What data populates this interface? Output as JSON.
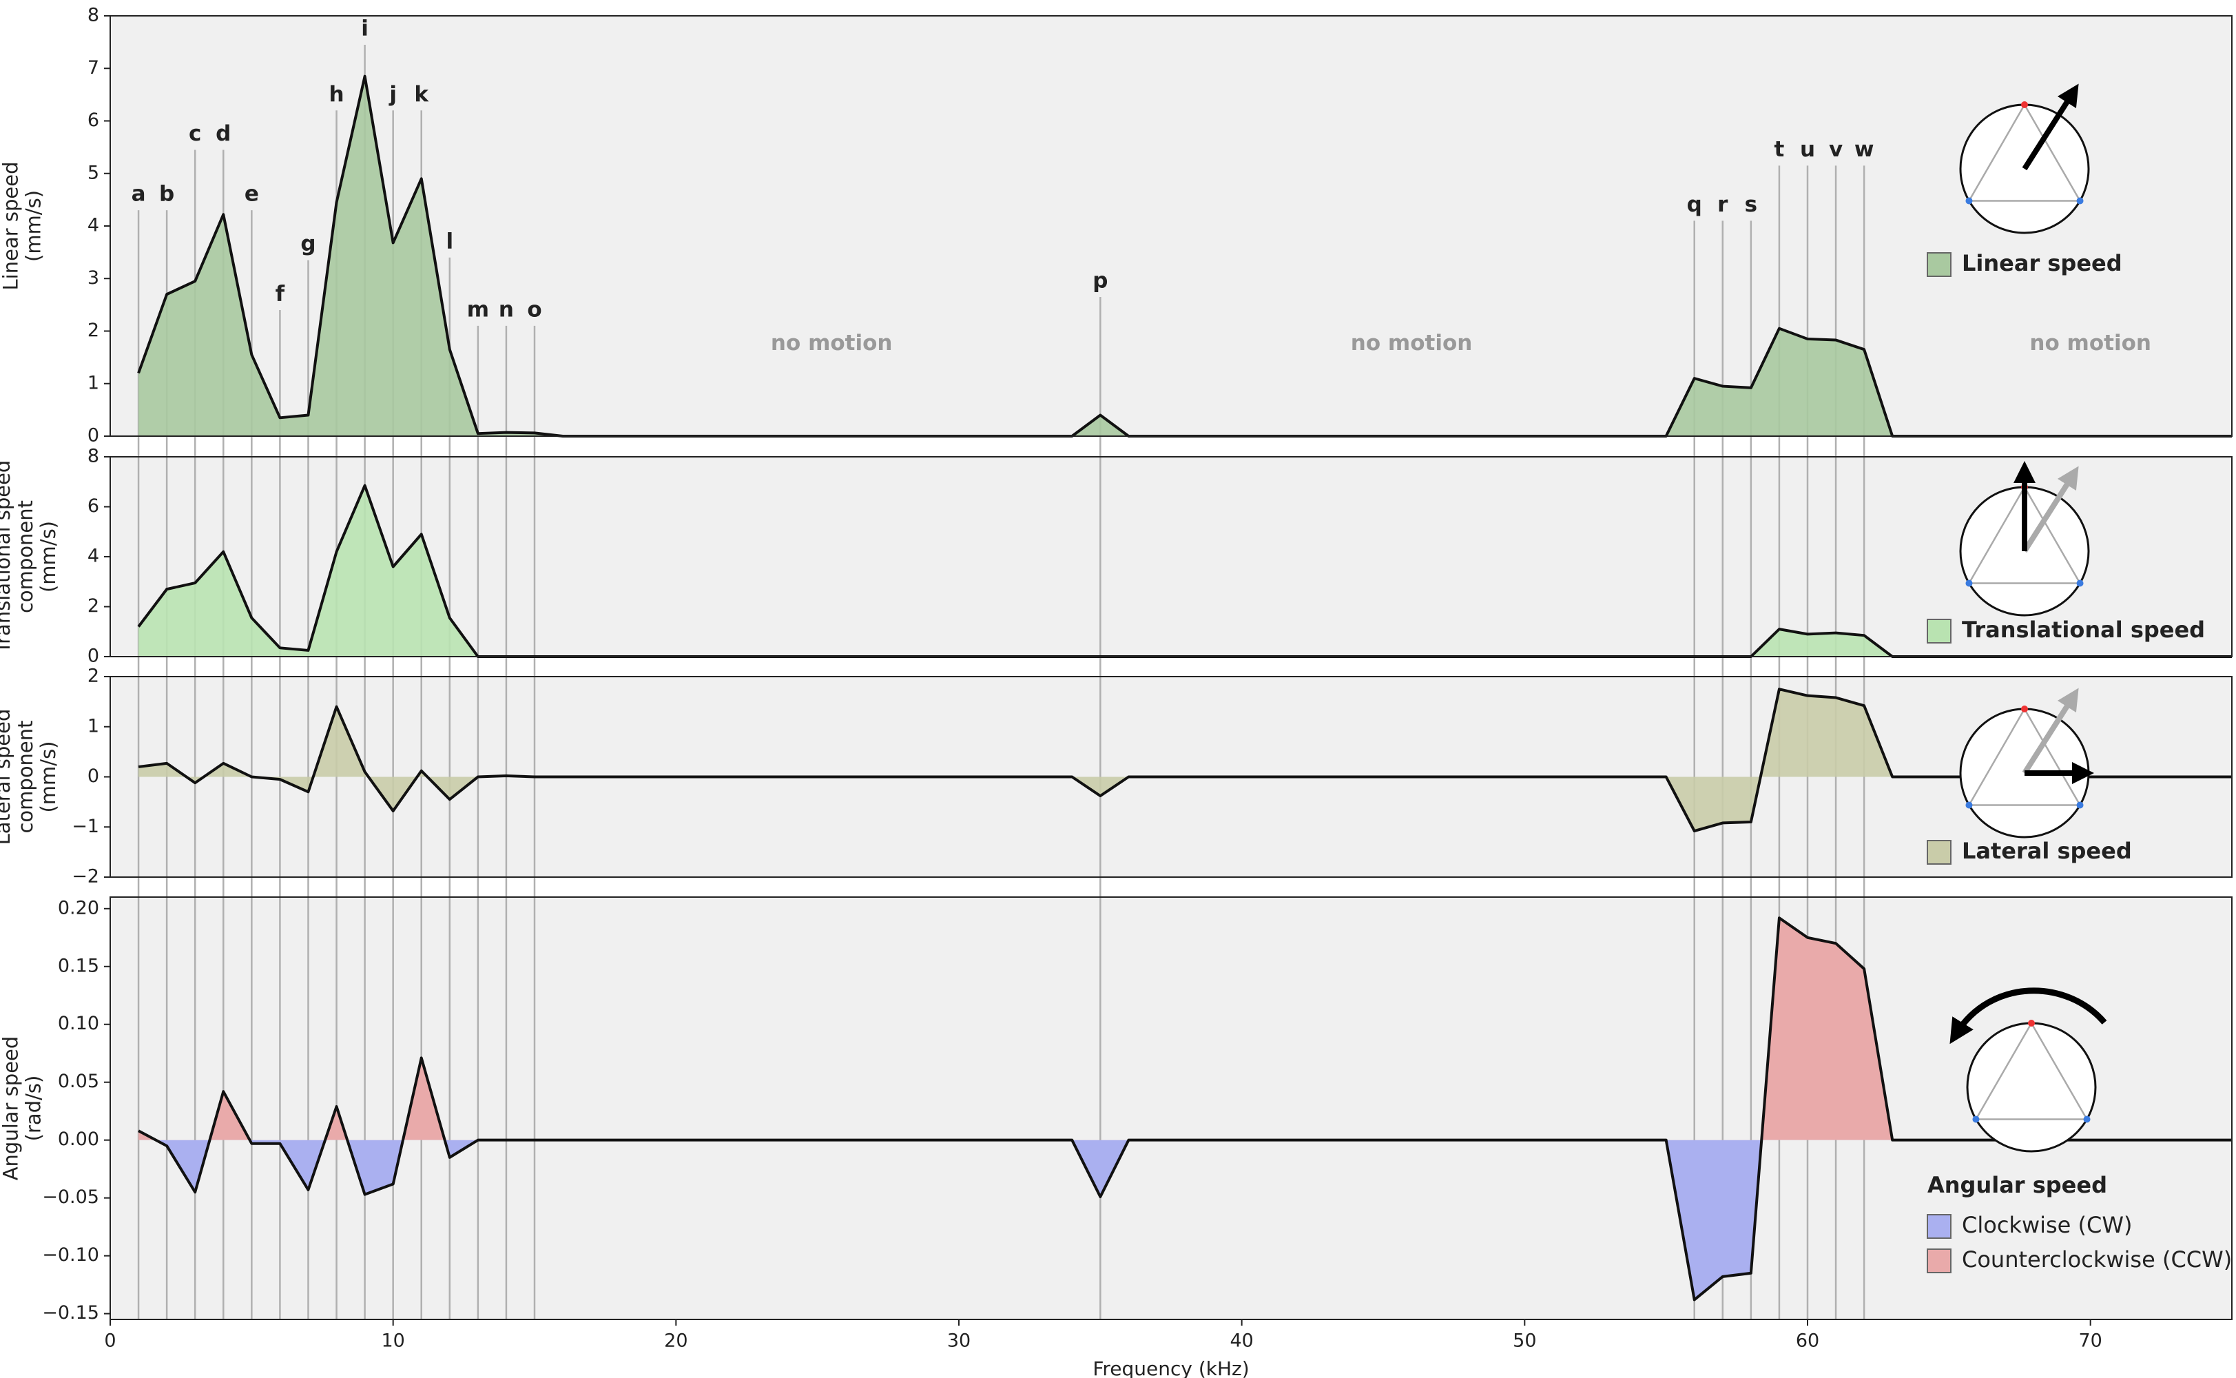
{
  "chart_data": [
    {
      "type": "area",
      "ylabel": [
        "Linear speed",
        "(mm/s)"
      ],
      "x": [
        1,
        2,
        3,
        4,
        5,
        6,
        7,
        8,
        9,
        10,
        11,
        12,
        13,
        14,
        15,
        16,
        34,
        35,
        36,
        55,
        56,
        57,
        58,
        59,
        60,
        61,
        62,
        63,
        75
      ],
      "xlim": [
        0,
        75
      ],
      "ylim": [
        0,
        8
      ],
      "yticks": [
        0,
        1,
        2,
        3,
        4,
        5,
        6,
        7,
        8
      ],
      "series": [
        {
          "name": "Linear speed",
          "color": "#a9c9a0",
          "values": [
            1.2,
            2.7,
            2.95,
            4.22,
            1.55,
            0.35,
            0.4,
            4.45,
            6.85,
            3.68,
            4.9,
            1.65,
            0.05,
            0.07,
            0.06,
            0,
            0,
            0.4,
            0,
            0,
            1.1,
            0.95,
            0.92,
            2.05,
            1.85,
            1.83,
            1.65,
            0,
            0
          ]
        }
      ],
      "annotations": [
        {
          "text": "a",
          "x": 1,
          "y": 4.3
        },
        {
          "text": "b",
          "x": 2,
          "y": 4.3
        },
        {
          "text": "c",
          "x": 3,
          "y": 5.45
        },
        {
          "text": "d",
          "x": 4,
          "y": 5.45
        },
        {
          "text": "e",
          "x": 5,
          "y": 4.3
        },
        {
          "text": "f",
          "x": 6,
          "y": 2.4
        },
        {
          "text": "g",
          "x": 7,
          "y": 3.35
        },
        {
          "text": "h",
          "x": 8,
          "y": 6.2
        },
        {
          "text": "i",
          "x": 9,
          "y": 7.45
        },
        {
          "text": "j",
          "x": 10,
          "y": 6.2
        },
        {
          "text": "k",
          "x": 11,
          "y": 6.2
        },
        {
          "text": "l",
          "x": 12,
          "y": 3.4
        },
        {
          "text": "m",
          "x": 13,
          "y": 2.1
        },
        {
          "text": "n",
          "x": 14,
          "y": 2.1
        },
        {
          "text": "o",
          "x": 15,
          "y": 2.1
        },
        {
          "text": "p",
          "x": 35,
          "y": 2.65
        },
        {
          "text": "q",
          "x": 56,
          "y": 4.1
        },
        {
          "text": "r",
          "x": 57,
          "y": 4.1
        },
        {
          "text": "s",
          "x": 58,
          "y": 4.1
        },
        {
          "text": "t",
          "x": 59,
          "y": 5.15
        },
        {
          "text": "u",
          "x": 60,
          "y": 5.15
        },
        {
          "text": "v",
          "x": 61,
          "y": 5.15
        },
        {
          "text": "w",
          "x": 62,
          "y": 5.15
        }
      ],
      "notes": [
        {
          "text": "no motion",
          "x": 25.5,
          "y": 1.75
        },
        {
          "text": "no motion",
          "x": 46,
          "y": 1.75
        },
        {
          "text": "no motion",
          "x": 70,
          "y": 1.75
        }
      ]
    },
    {
      "type": "area",
      "ylabel": [
        "Translational speed",
        "component",
        "(mm/s)"
      ],
      "x": [
        1,
        2,
        3,
        4,
        5,
        6,
        7,
        8,
        9,
        10,
        11,
        12,
        13,
        14,
        15,
        16,
        34,
        35,
        36,
        55,
        56,
        57,
        58,
        59,
        60,
        61,
        62,
        63,
        75
      ],
      "xlim": [
        0,
        75
      ],
      "ylim": [
        0,
        8
      ],
      "yticks": [
        0,
        2,
        4,
        6,
        8
      ],
      "series": [
        {
          "name": "Translational speed",
          "color": "#b9e3b1",
          "values": [
            1.2,
            2.7,
            2.95,
            4.2,
            1.55,
            0.35,
            0.25,
            4.2,
            6.85,
            3.6,
            4.9,
            1.55,
            0,
            0,
            0,
            0,
            0,
            0,
            0,
            0,
            0,
            0,
            0,
            1.1,
            0.9,
            0.95,
            0.85,
            0,
            0
          ]
        }
      ]
    },
    {
      "type": "area",
      "ylabel": [
        "Lateral speed",
        "component",
        "(mm/s)"
      ],
      "x": [
        1,
        2,
        3,
        4,
        5,
        6,
        7,
        8,
        9,
        10,
        11,
        12,
        13,
        14,
        15,
        16,
        34,
        35,
        36,
        55,
        56,
        57,
        58,
        59,
        60,
        61,
        62,
        63,
        75
      ],
      "xlim": [
        0,
        75
      ],
      "ylim": [
        -2,
        2
      ],
      "yticks": [
        {
          "value": -2,
          "label": "−2"
        },
        {
          "value": -1,
          "label": "−1"
        },
        0,
        1,
        2
      ],
      "series": [
        {
          "name": "Lateral speed",
          "color": "#c9cca9",
          "values": [
            0.2,
            0.27,
            -0.12,
            0.27,
            0,
            -0.05,
            -0.3,
            1.4,
            0.1,
            -0.68,
            0.12,
            -0.45,
            0,
            0.02,
            0,
            0,
            0,
            -0.38,
            0,
            0,
            -1.08,
            -0.92,
            -0.9,
            1.75,
            1.62,
            1.58,
            1.42,
            0,
            0
          ]
        }
      ]
    },
    {
      "type": "signed-area",
      "ylabel": [
        "Angular speed",
        "(rad/s)"
      ],
      "xlabel": "Frequency (kHz)",
      "x": [
        1,
        2,
        3,
        4,
        5,
        6,
        7,
        8,
        9,
        10,
        11,
        12,
        13,
        14,
        15,
        16,
        34,
        35,
        36,
        55,
        56,
        57,
        58,
        59,
        60,
        61,
        62,
        63,
        75
      ],
      "xlim": [
        0,
        75
      ],
      "xticks": [
        0,
        10,
        20,
        30,
        40,
        50,
        60,
        70
      ],
      "ylim": [
        -0.155,
        0.21
      ],
      "yticks": [
        {
          "value": -0.15,
          "label": "−0.15"
        },
        {
          "value": -0.1,
          "label": "−0.10"
        },
        {
          "value": -0.05,
          "label": "−0.05"
        },
        {
          "value": 0,
          "label": "0.00"
        },
        {
          "value": 0.05,
          "label": "0.05"
        },
        {
          "value": 0.1,
          "label": "0.10"
        },
        {
          "value": 0.15,
          "label": "0.15"
        },
        {
          "value": 0.2,
          "label": "0.20"
        }
      ],
      "legend_title": "Angular speed",
      "series": [
        {
          "values": [
            0.008,
            -0.005,
            -0.045,
            0.042,
            -0.003,
            -0.003,
            -0.043,
            0.029,
            -0.047,
            -0.038,
            0.071,
            -0.015,
            0,
            0,
            0,
            0,
            0,
            -0.049,
            0,
            0,
            -0.138,
            -0.118,
            -0.115,
            0.192,
            0.175,
            0.17,
            0.148,
            0,
            0
          ]
        }
      ],
      "sign_fills": [
        {
          "name": "Clockwise (CW)",
          "color": "#aab0f0",
          "sign": -1
        },
        {
          "name": "Counterclockwise (CCW)",
          "color": "#e9aaaa",
          "sign": 1
        }
      ]
    }
  ]
}
